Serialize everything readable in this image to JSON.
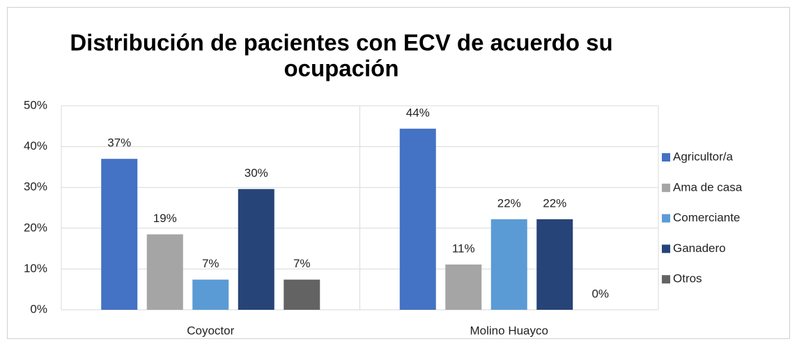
{
  "chart_data": {
    "type": "bar",
    "title": [
      "Distribución de pacientes con ECV de acuerdo su",
      "ocupación"
    ],
    "categories": [
      "Coyoctor",
      "Molino Huayco"
    ],
    "series": [
      {
        "name": "Agricultor/a",
        "color": "#4472c4",
        "values": [
          37.0,
          44.4
        ],
        "value_labels": [
          "37%",
          "44%"
        ]
      },
      {
        "name": "Ama de casa",
        "color": "#a5a5a5",
        "values": [
          18.5,
          11.1
        ],
        "value_labels": [
          "19%",
          "11%"
        ]
      },
      {
        "name": "Comerciante",
        "color": "#5b9bd5",
        "values": [
          7.4,
          22.2
        ],
        "value_labels": [
          "7%",
          "22%"
        ]
      },
      {
        "name": "Ganadero",
        "color": "#264478",
        "values": [
          29.6,
          22.2
        ],
        "value_labels": [
          "30%",
          "22%"
        ]
      },
      {
        "name": "Otros",
        "color": "#636363",
        "values": [
          7.4,
          0
        ],
        "value_labels": [
          "7%",
          "0%"
        ]
      }
    ],
    "ylim": [
      0,
      50
    ],
    "yticks": [
      {
        "value": 0,
        "label": "0%"
      },
      {
        "value": 10,
        "label": "10%"
      },
      {
        "value": 20,
        "label": "20%"
      },
      {
        "value": 30,
        "label": "30%"
      },
      {
        "value": 40,
        "label": "40%"
      },
      {
        "value": 50,
        "label": "50%"
      }
    ],
    "grid": true,
    "legend": "right"
  }
}
